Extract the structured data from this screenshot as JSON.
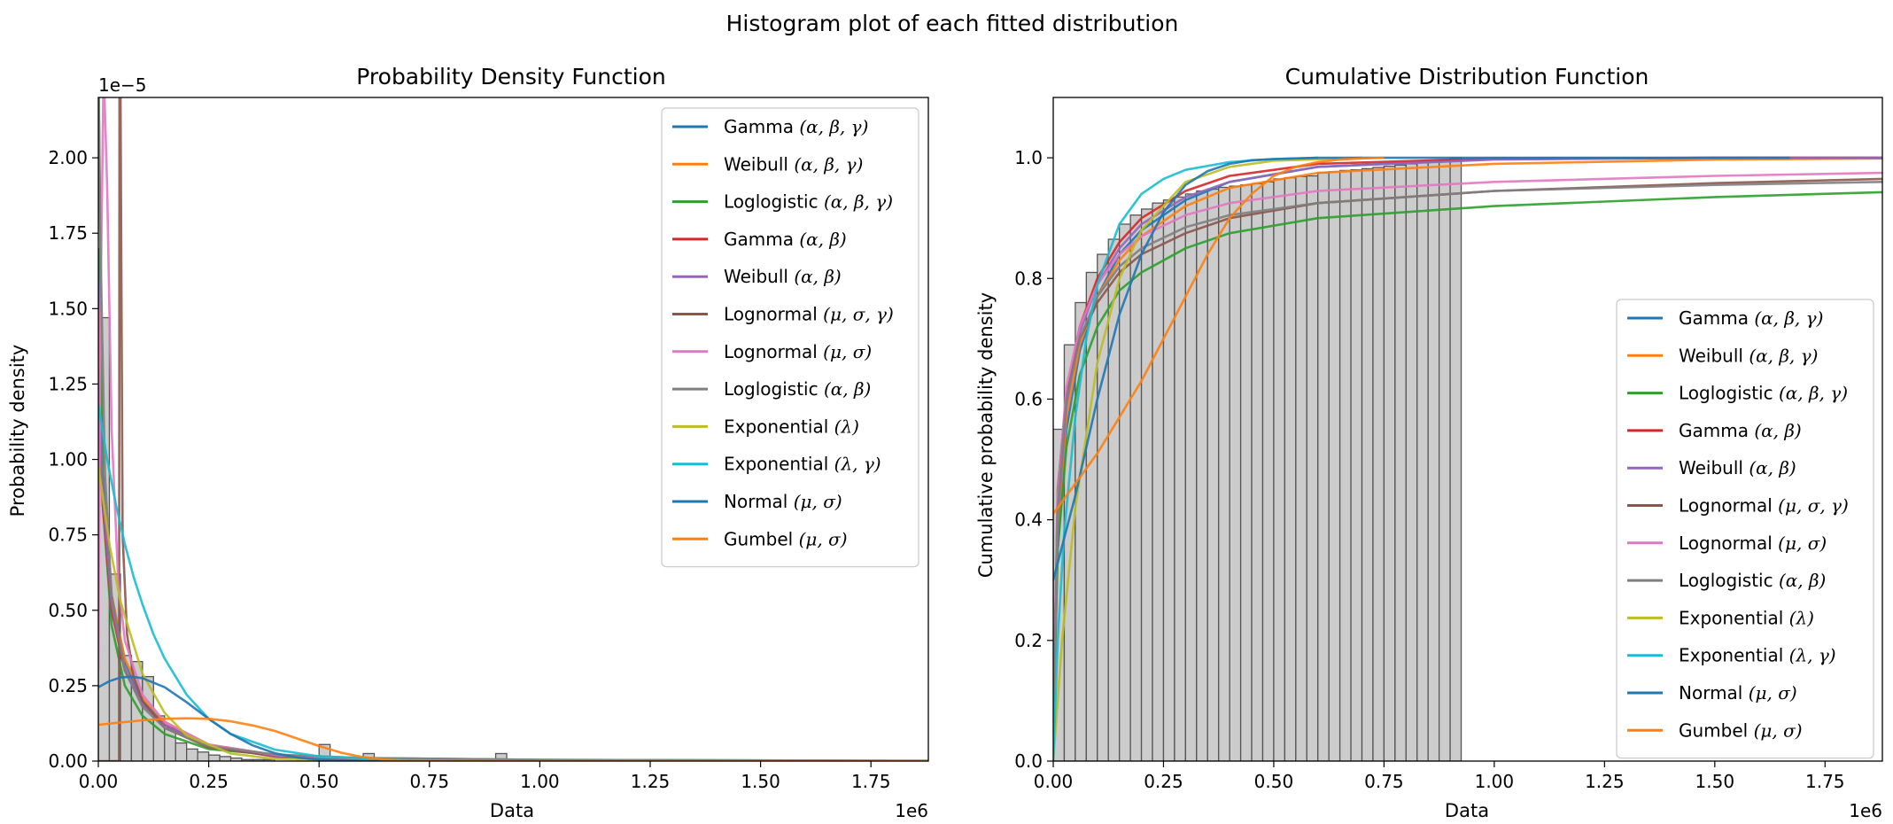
{
  "figure": {
    "suptitle": "Histogram plot of each fitted distribution"
  },
  "chart_data": [
    {
      "type": "line",
      "name": "pdf-panel",
      "title": "Probability Density Function",
      "xlabel": "Data",
      "ylabel": "Probability density",
      "x_offset_text": "1e6",
      "y_offset_text": "1e−5",
      "xlim": [
        0,
        1880000
      ],
      "ylim": [
        0,
        2.2
      ],
      "xticks": [
        0,
        250000,
        500000,
        750000,
        1000000,
        1250000,
        1500000,
        1750000
      ],
      "xtick_labels": [
        "0.00",
        "0.25",
        "0.50",
        "0.75",
        "1.00",
        "1.25",
        "1.50",
        "1.75"
      ],
      "yticks": [
        0,
        0.25,
        0.5,
        0.75,
        1.0,
        1.25,
        1.5,
        1.75,
        2.0
      ],
      "ytick_labels": [
        "0.00",
        "0.25",
        "0.50",
        "0.75",
        "1.00",
        "1.25",
        "1.50",
        "1.75",
        "2.00"
      ],
      "grid": false,
      "legend_position": "upper right",
      "histogram": {
        "bin_width": 25000,
        "values": [
          1.47,
          0.62,
          0.35,
          0.33,
          0.28,
          0.15,
          0.11,
          0.06,
          0.04,
          0.03,
          0.02,
          0.015,
          0.01,
          0.005,
          0.005,
          0.005,
          0,
          0,
          0,
          0.006,
          0.055,
          0,
          0,
          0,
          0.025,
          0,
          0,
          0,
          0,
          0,
          0,
          0,
          0,
          0,
          0,
          0,
          0.025
        ]
      },
      "series": [
        {
          "name": "Gamma $(\\alpha,\\beta,\\gamma)$",
          "color": "#1f77b4",
          "x": [
            0,
            10000,
            30000,
            60000,
            100000,
            150000,
            250000,
            400000,
            600000,
            1000000,
            1880000
          ],
          "y": [
            1.7,
            0.95,
            0.55,
            0.33,
            0.2,
            0.12,
            0.05,
            0.015,
            0.004,
            0.0003,
            0
          ]
        },
        {
          "name": "Weibull $(\\alpha,\\beta,\\gamma)$",
          "color": "#ff7f0e",
          "x": [
            0,
            10000,
            30000,
            60000,
            100000,
            150000,
            250000,
            400000,
            600000,
            1000000,
            1880000
          ],
          "y": [
            1.5,
            0.9,
            0.55,
            0.34,
            0.21,
            0.13,
            0.055,
            0.02,
            0.006,
            0.001,
            0
          ]
        },
        {
          "name": "Loglogistic $(\\alpha,\\beta,\\gamma)$",
          "color": "#2ca02c",
          "x": [
            0,
            10000,
            30000,
            60000,
            100000,
            150000,
            250000,
            400000,
            600000,
            1000000,
            1880000
          ],
          "y": [
            2.4,
            0.85,
            0.45,
            0.25,
            0.15,
            0.09,
            0.04,
            0.02,
            0.01,
            0.004,
            0.001
          ]
        },
        {
          "name": "Gamma $(\\alpha,\\beta)$",
          "color": "#d62728",
          "x": [
            0,
            10000,
            30000,
            60000,
            100000,
            150000,
            250000,
            400000,
            600000,
            1000000,
            1880000
          ],
          "y": [
            1.2,
            0.85,
            0.5,
            0.3,
            0.19,
            0.12,
            0.05,
            0.015,
            0.004,
            0.0003,
            0
          ]
        },
        {
          "name": "Weibull $(\\alpha,\\beta)$",
          "color": "#9467bd",
          "x": [
            0,
            10000,
            30000,
            60000,
            100000,
            150000,
            250000,
            400000,
            600000,
            1000000,
            1880000
          ],
          "y": [
            1.3,
            0.88,
            0.52,
            0.31,
            0.19,
            0.12,
            0.05,
            0.016,
            0.005,
            0.0005,
            0
          ]
        },
        {
          "name": "Lognormal $(\\mu,\\sigma,\\gamma)$",
          "color": "#8c564b",
          "x": [
            0,
            47000,
            48000,
            50000,
            55000,
            65000,
            80000,
            100000,
            150000,
            250000,
            400000,
            600000,
            1000000,
            1880000
          ],
          "y": [
            0,
            0,
            2.3,
            2.3,
            0.75,
            0.42,
            0.28,
            0.2,
            0.11,
            0.045,
            0.018,
            0.007,
            0.002,
            0.0004
          ]
        },
        {
          "name": "Lognormal $(\\mu,\\sigma)$",
          "color": "#e377c2",
          "x": [
            0,
            5000,
            12000,
            20000,
            30000,
            45000,
            60000,
            100000,
            150000,
            250000,
            400000,
            600000,
            1000000,
            1880000
          ],
          "y": [
            0.3,
            1.5,
            2.3,
            1.9,
            1.1,
            0.6,
            0.4,
            0.22,
            0.13,
            0.055,
            0.02,
            0.008,
            0.002,
            0.0004
          ]
        },
        {
          "name": "Loglogistic $(\\alpha,\\beta)$",
          "color": "#7f7f7f",
          "x": [
            0,
            5000,
            15000,
            30000,
            60000,
            100000,
            150000,
            250000,
            400000,
            600000,
            1000000,
            1880000
          ],
          "y": [
            2.3,
            1.7,
            0.95,
            0.55,
            0.3,
            0.18,
            0.11,
            0.05,
            0.022,
            0.01,
            0.004,
            0.001
          ]
        },
        {
          "name": "Exponential $(\\lambda)$",
          "color": "#bcbd22",
          "x": [
            0,
            25000,
            50000,
            100000,
            150000,
            200000,
            300000,
            400000,
            600000,
            1000000,
            1880000
          ],
          "y": [
            0.98,
            0.72,
            0.53,
            0.29,
            0.16,
            0.085,
            0.025,
            0.007,
            0.0006,
            0,
            0
          ]
        },
        {
          "name": "Exponential $(\\lambda,\\gamma)$",
          "color": "#17becf",
          "x": [
            0,
            20000,
            40000,
            60000,
            80000,
            100000,
            125000,
            150000,
            200000,
            250000,
            300000,
            400000,
            500000,
            700000,
            1000000,
            1880000
          ],
          "y": [
            1.18,
            1.0,
            0.85,
            0.72,
            0.61,
            0.52,
            0.42,
            0.34,
            0.22,
            0.14,
            0.09,
            0.038,
            0.016,
            0.003,
            0,
            0
          ]
        },
        {
          "name": "Normal $(\\mu,\\sigma)$",
          "color": "#1f77b4",
          "x": [
            0,
            25000,
            50000,
            75000,
            100000,
            150000,
            200000,
            250000,
            300000,
            350000,
            400000,
            450000,
            500000,
            600000,
            700000,
            1000000,
            1880000
          ],
          "y": [
            0.245,
            0.265,
            0.277,
            0.28,
            0.275,
            0.245,
            0.195,
            0.14,
            0.09,
            0.052,
            0.026,
            0.012,
            0.005,
            0.0006,
            0,
            0,
            0
          ]
        },
        {
          "name": "Gumbel $(\\mu,\\sigma)$",
          "color": "#ff7f0e",
          "x": [
            0,
            50000,
            100000,
            150000,
            200000,
            250000,
            300000,
            350000,
            400000,
            450000,
            500000,
            550000,
            600000,
            650000,
            700000,
            800000,
            1000000,
            1880000
          ],
          "y": [
            0.12,
            0.128,
            0.135,
            0.14,
            0.142,
            0.14,
            0.132,
            0.118,
            0.1,
            0.075,
            0.05,
            0.028,
            0.013,
            0.005,
            0.0015,
            0.0002,
            0,
            0
          ]
        }
      ]
    },
    {
      "type": "line",
      "name": "cdf-panel",
      "title": "Cumulative Distribution Function",
      "xlabel": "Data",
      "ylabel": "Cumulative probability density",
      "x_offset_text": "1e6",
      "xlim": [
        0,
        1880000
      ],
      "ylim": [
        0,
        1.1
      ],
      "xticks": [
        0,
        250000,
        500000,
        750000,
        1000000,
        1250000,
        1500000,
        1750000
      ],
      "xtick_labels": [
        "0.00",
        "0.25",
        "0.50",
        "0.75",
        "1.00",
        "1.25",
        "1.50",
        "1.75"
      ],
      "yticks": [
        0,
        0.2,
        0.4,
        0.6,
        0.8,
        1.0
      ],
      "ytick_labels": [
        "0.0",
        "0.2",
        "0.4",
        "0.6",
        "0.8",
        "1.0"
      ],
      "grid": false,
      "legend_position": "lower right",
      "histogram": {
        "bin_width": 25000,
        "values": [
          0.55,
          0.69,
          0.76,
          0.81,
          0.84,
          0.865,
          0.89,
          0.905,
          0.915,
          0.925,
          0.93,
          0.935,
          0.94,
          0.945,
          0.948,
          0.951,
          0.953,
          0.955,
          0.957,
          0.96,
          0.965,
          0.967,
          0.969,
          0.97,
          0.975,
          0.977,
          0.979,
          0.98,
          0.982,
          0.984,
          0.986,
          0.988,
          0.99,
          0.992,
          0.994,
          0.996,
          1.0
        ]
      },
      "series": [
        {
          "name": "Gamma $(\\alpha,\\beta,\\gamma)$",
          "color": "#1f77b4",
          "x": [
            0,
            10000,
            30000,
            60000,
            100000,
            150000,
            200000,
            300000,
            400000,
            600000,
            1000000,
            1500000,
            1880000
          ],
          "y": [
            0.05,
            0.35,
            0.55,
            0.68,
            0.77,
            0.84,
            0.88,
            0.93,
            0.96,
            0.985,
            0.998,
            1.0,
            1.0
          ]
        },
        {
          "name": "Weibull $(\\alpha,\\beta,\\gamma)$",
          "color": "#ff7f0e",
          "x": [
            0,
            10000,
            30000,
            60000,
            100000,
            150000,
            200000,
            300000,
            400000,
            600000,
            1000000,
            1500000,
            1880000
          ],
          "y": [
            0.05,
            0.38,
            0.57,
            0.69,
            0.77,
            0.83,
            0.87,
            0.92,
            0.95,
            0.975,
            0.99,
            0.997,
            0.999
          ]
        },
        {
          "name": "Loglogistic $(\\alpha,\\beta,\\gamma)$",
          "color": "#2ca02c",
          "x": [
            0,
            10000,
            30000,
            60000,
            100000,
            150000,
            200000,
            300000,
            400000,
            600000,
            1000000,
            1500000,
            1880000
          ],
          "y": [
            0.05,
            0.35,
            0.52,
            0.64,
            0.72,
            0.78,
            0.81,
            0.85,
            0.875,
            0.9,
            0.92,
            0.935,
            0.943
          ]
        },
        {
          "name": "Gamma $(\\alpha,\\beta)$",
          "color": "#d62728",
          "x": [
            0,
            10000,
            30000,
            60000,
            100000,
            150000,
            200000,
            300000,
            400000,
            600000,
            1000000,
            1500000,
            1880000
          ],
          "y": [
            0.05,
            0.42,
            0.6,
            0.72,
            0.8,
            0.86,
            0.9,
            0.945,
            0.97,
            0.99,
            0.999,
            1.0,
            1.0
          ]
        },
        {
          "name": "Weibull $(\\alpha,\\beta)$",
          "color": "#9467bd",
          "x": [
            0,
            10000,
            30000,
            60000,
            100000,
            150000,
            200000,
            300000,
            400000,
            600000,
            1000000,
            1500000,
            1880000
          ],
          "y": [
            0.05,
            0.4,
            0.59,
            0.71,
            0.79,
            0.85,
            0.89,
            0.935,
            0.96,
            0.985,
            0.997,
            1.0,
            1.0
          ]
        },
        {
          "name": "Lognormal $(\\mu,\\sigma,\\gamma)$",
          "color": "#8c564b",
          "x": [
            0,
            10000,
            30000,
            60000,
            100000,
            150000,
            200000,
            300000,
            400000,
            600000,
            1000000,
            1500000,
            1880000
          ],
          "y": [
            0.05,
            0.45,
            0.61,
            0.7,
            0.76,
            0.81,
            0.84,
            0.875,
            0.9,
            0.925,
            0.945,
            0.958,
            0.965
          ]
        },
        {
          "name": "Lognormal $(\\mu,\\sigma)$",
          "color": "#e377c2",
          "x": [
            0,
            10000,
            30000,
            60000,
            100000,
            150000,
            200000,
            300000,
            400000,
            600000,
            1000000,
            1500000,
            1880000
          ],
          "y": [
            0.05,
            0.44,
            0.62,
            0.72,
            0.79,
            0.84,
            0.87,
            0.905,
            0.925,
            0.945,
            0.96,
            0.97,
            0.975
          ]
        },
        {
          "name": "Loglogistic $(\\alpha,\\beta)$",
          "color": "#7f7f7f",
          "x": [
            0,
            10000,
            30000,
            60000,
            100000,
            150000,
            200000,
            300000,
            400000,
            600000,
            1000000,
            1500000,
            1880000
          ],
          "y": [
            0.05,
            0.42,
            0.6,
            0.7,
            0.77,
            0.82,
            0.85,
            0.885,
            0.905,
            0.925,
            0.945,
            0.955,
            0.96
          ]
        },
        {
          "name": "Exponential $(\\lambda)$",
          "color": "#bcbd22",
          "x": [
            0,
            20000,
            50000,
            100000,
            150000,
            200000,
            300000,
            400000,
            500000,
            700000
          ],
          "y": [
            0,
            0.2,
            0.42,
            0.66,
            0.8,
            0.88,
            0.96,
            0.985,
            0.995,
            1.0
          ]
        },
        {
          "name": "Exponential $(\\lambda,\\gamma)$",
          "color": "#17becf",
          "x": [
            0,
            10000,
            25000,
            50000,
            75000,
            100000,
            150000,
            200000,
            250000,
            300000,
            400000,
            500000,
            600000
          ],
          "y": [
            0,
            0.2,
            0.38,
            0.57,
            0.7,
            0.79,
            0.89,
            0.94,
            0.965,
            0.98,
            0.993,
            0.998,
            1.0
          ]
        },
        {
          "name": "Normal $(\\mu,\\sigma)$",
          "color": "#1f77b4",
          "x": [
            0,
            50000,
            100000,
            150000,
            200000,
            250000,
            300000,
            350000,
            400000,
            450000,
            500000,
            600000,
            800000,
            1000000,
            1500000,
            1670000
          ],
          "y": [
            0.3,
            0.44,
            0.6,
            0.74,
            0.84,
            0.91,
            0.955,
            0.978,
            0.99,
            0.996,
            0.998,
            1.0,
            1.0,
            1.0,
            1.0,
            1.0
          ]
        },
        {
          "name": "Gumbel $(\\mu,\\sigma)$",
          "color": "#ff7f0e",
          "x": [
            0,
            50000,
            100000,
            150000,
            200000,
            250000,
            300000,
            350000,
            400000,
            450000,
            500000,
            550000,
            600000,
            650000,
            700000,
            750000
          ],
          "y": [
            0.41,
            0.46,
            0.51,
            0.57,
            0.63,
            0.7,
            0.77,
            0.84,
            0.9,
            0.94,
            0.97,
            0.985,
            0.993,
            0.997,
            0.999,
            1.0
          ]
        }
      ]
    }
  ]
}
